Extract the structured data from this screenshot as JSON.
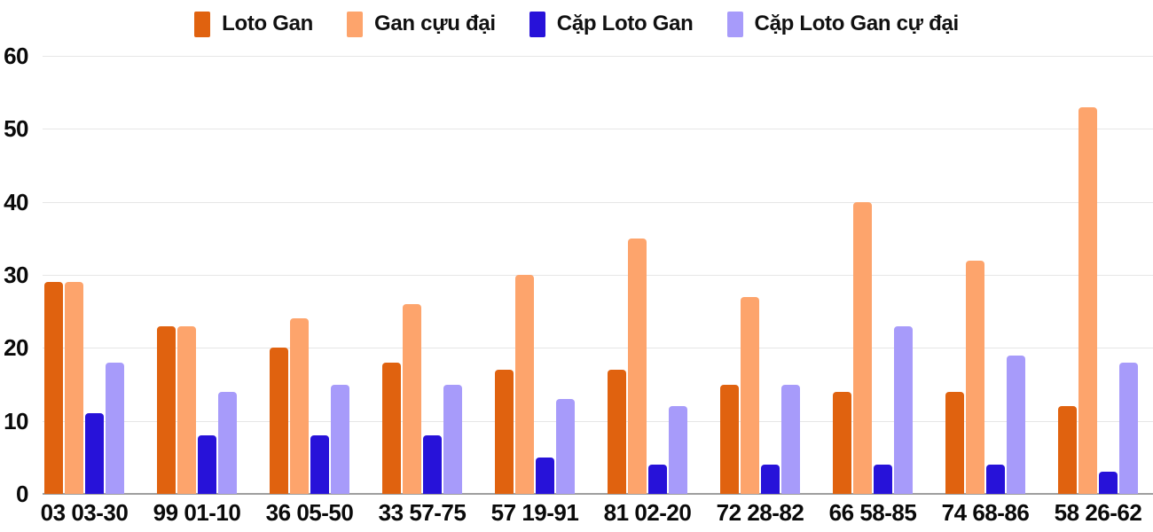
{
  "chart_data": {
    "type": "bar",
    "title": "",
    "xlabel": "",
    "ylabel": "",
    "categories": [
      "03 03-30",
      "99 01-10",
      "36 05-50",
      "33 57-75",
      "57 19-91",
      "81 02-20",
      "72 28-82",
      "66 58-85",
      "74 68-86",
      "58 26-62"
    ],
    "series": [
      {
        "name": "Loto Gan",
        "color": "#e0620f",
        "values": [
          29,
          23,
          20,
          18,
          17,
          17,
          15,
          14,
          14,
          12
        ]
      },
      {
        "name": "Gan cựu đại",
        "color": "#fda46c",
        "values": [
          29,
          23,
          24,
          26,
          30,
          35,
          27,
          40,
          32,
          53
        ]
      },
      {
        "name": "Cặp Loto Gan",
        "color": "#2712d9",
        "values": [
          11,
          8,
          8,
          8,
          5,
          4,
          4,
          4,
          4,
          3
        ]
      },
      {
        "name": "Cặp Loto Gan cự đại",
        "color": "#a79bfa",
        "values": [
          18,
          14,
          15,
          15,
          13,
          12,
          15,
          23,
          19,
          18
        ]
      }
    ],
    "ylim": [
      0,
      60
    ],
    "ytick_step": 10,
    "yticks": [
      "0",
      "10",
      "20",
      "30",
      "40",
      "50",
      "60"
    ],
    "grid": true,
    "legend_position": "top"
  },
  "colors": {
    "background": "#ffffff",
    "gridline": "#e6e6e6",
    "axis_line": "#9e9e9e",
    "text": "#0a0a0a"
  }
}
